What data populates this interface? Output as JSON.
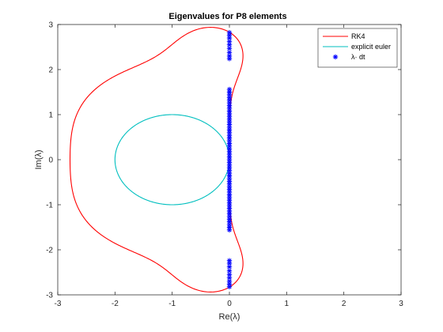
{
  "chart_data": {
    "type": "scatter",
    "title": "Eigenvalues for P8 elements",
    "xlabel": "Re(λ)",
    "ylabel": "Im(λ)",
    "xlim": [
      -3,
      3
    ],
    "ylim": [
      -3,
      3
    ],
    "xticks": [
      -3,
      -2,
      -1,
      0,
      1,
      2,
      3
    ],
    "yticks": [
      -3,
      -2,
      -1,
      0,
      1,
      2,
      3
    ],
    "grid": false,
    "legend_position": "top-right",
    "series": [
      {
        "name": "RK4",
        "kind": "curve",
        "color": "#ff0000",
        "description": "stability boundary |1+z+z^2/2+z^3/6+z^4/24| = 1"
      },
      {
        "name": "explicit euler",
        "kind": "curve",
        "color": "#00bfbf",
        "center": [
          -1,
          0
        ],
        "radius": 1
      },
      {
        "name": "λ· dt",
        "kind": "markers",
        "color": "#0000ff",
        "marker": "*",
        "points": [
          [
            0,
            2.82
          ],
          [
            0,
            2.76
          ],
          [
            0,
            2.7
          ],
          [
            0,
            2.62
          ],
          [
            0,
            2.55
          ],
          [
            0,
            2.47
          ],
          [
            0,
            2.38
          ],
          [
            0,
            2.3
          ],
          [
            0,
            2.24
          ],
          [
            0,
            1.56
          ],
          [
            0,
            1.5
          ],
          [
            0,
            1.44
          ],
          [
            0,
            1.38
          ],
          [
            0,
            1.32
          ],
          [
            0,
            1.26
          ],
          [
            0,
            1.2
          ],
          [
            0,
            1.14
          ],
          [
            0,
            1.08
          ],
          [
            0,
            1.02
          ],
          [
            0,
            0.96
          ],
          [
            0,
            0.9
          ],
          [
            0,
            0.84
          ],
          [
            0,
            0.78
          ],
          [
            0,
            0.72
          ],
          [
            0,
            0.66
          ],
          [
            0,
            0.6
          ],
          [
            0,
            0.54
          ],
          [
            0,
            0.48
          ],
          [
            0,
            0.42
          ],
          [
            0,
            0.36
          ],
          [
            0,
            0.3
          ],
          [
            0,
            0.24
          ],
          [
            0,
            0.18
          ],
          [
            0,
            0.12
          ],
          [
            0,
            0.06
          ],
          [
            0,
            0.0
          ],
          [
            0,
            -0.06
          ],
          [
            0,
            -0.12
          ],
          [
            0,
            -0.18
          ],
          [
            0,
            -0.24
          ],
          [
            0,
            -0.3
          ],
          [
            0,
            -0.36
          ],
          [
            0,
            -0.42
          ],
          [
            0,
            -0.48
          ],
          [
            0,
            -0.54
          ],
          [
            0,
            -0.6
          ],
          [
            0,
            -0.66
          ],
          [
            0,
            -0.72
          ],
          [
            0,
            -0.78
          ],
          [
            0,
            -0.84
          ],
          [
            0,
            -0.9
          ],
          [
            0,
            -0.96
          ],
          [
            0,
            -1.02
          ],
          [
            0,
            -1.08
          ],
          [
            0,
            -1.14
          ],
          [
            0,
            -1.2
          ],
          [
            0,
            -1.26
          ],
          [
            0,
            -1.32
          ],
          [
            0,
            -1.38
          ],
          [
            0,
            -1.44
          ],
          [
            0,
            -1.5
          ],
          [
            0,
            -1.56
          ],
          [
            0,
            -2.24
          ],
          [
            0,
            -2.3
          ],
          [
            0,
            -2.38
          ],
          [
            0,
            -2.47
          ],
          [
            0,
            -2.55
          ],
          [
            0,
            -2.62
          ],
          [
            0,
            -2.7
          ],
          [
            0,
            -2.76
          ],
          [
            0,
            -2.82
          ]
        ]
      }
    ]
  }
}
